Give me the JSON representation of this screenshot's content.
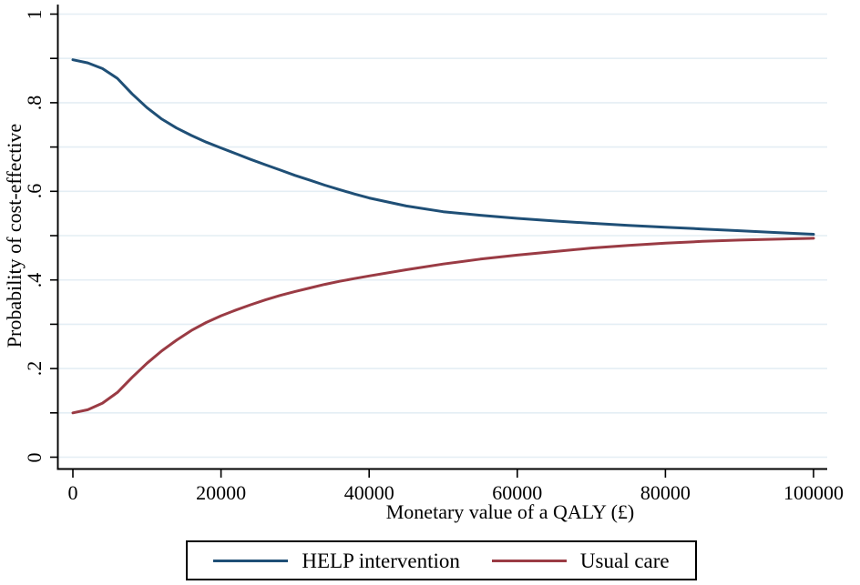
{
  "colors": {
    "background": "#ffffff",
    "axis": "#000000",
    "grid": "#e4eef4",
    "help_line": "#1f4f76",
    "usual_line": "#9a3b44",
    "legend_border": "#000000"
  },
  "figure": {
    "y_axis": {
      "title": "Probability of cost-effective",
      "tick_labels": [
        "0",
        ".2",
        ".4",
        ".6",
        ".8",
        "1"
      ],
      "tick_values": [
        0,
        0.2,
        0.4,
        0.6,
        0.8,
        1
      ],
      "minor_tick_step": 0.1,
      "range": [
        0,
        1
      ],
      "label_rotation": "vertical"
    },
    "x_axis": {
      "title": "Monetary value of a QALY (£)",
      "tick_labels": [
        "0",
        "20000",
        "40000",
        "60000",
        "80000",
        "100000"
      ],
      "tick_values": [
        0,
        20000,
        40000,
        60000,
        80000,
        100000
      ],
      "range": [
        0,
        100000
      ]
    },
    "legend": {
      "position": "bottom-center, boxed",
      "entries": [
        {
          "label": "HELP intervention",
          "color": "#1f4f76"
        },
        {
          "label": "Usual care",
          "color": "#9a3b44"
        }
      ]
    }
  },
  "chart_data": {
    "type": "line",
    "title": "",
    "xlabel": "Monetary value of a QALY (£)",
    "ylabel": "Probability of cost-effective",
    "xlim": [
      0,
      100000
    ],
    "ylim": [
      0,
      1
    ],
    "grid": "horizontal gridlines every 0.1, pale blue",
    "legend_position": "bottom, boxed",
    "x": [
      0,
      2000,
      4000,
      6000,
      8000,
      10000,
      12000,
      14000,
      16000,
      18000,
      20000,
      22000,
      24000,
      26000,
      28000,
      30000,
      32000,
      34000,
      36000,
      38000,
      40000,
      45000,
      50000,
      55000,
      60000,
      65000,
      70000,
      75000,
      80000,
      85000,
      90000,
      95000,
      100000
    ],
    "series": [
      {
        "name": "HELP intervention",
        "color": "#1f4f76",
        "values": [
          0.897,
          0.89,
          0.877,
          0.855,
          0.82,
          0.789,
          0.763,
          0.743,
          0.726,
          0.711,
          0.698,
          0.685,
          0.672,
          0.66,
          0.648,
          0.636,
          0.625,
          0.614,
          0.604,
          0.594,
          0.585,
          0.567,
          0.554,
          0.546,
          0.539,
          0.533,
          0.528,
          0.523,
          0.519,
          0.515,
          0.511,
          0.507,
          0.503
        ]
      },
      {
        "name": "Usual care",
        "color": "#9a3b44",
        "values": [
          0.1,
          0.107,
          0.122,
          0.146,
          0.18,
          0.212,
          0.24,
          0.264,
          0.286,
          0.304,
          0.319,
          0.332,
          0.344,
          0.355,
          0.365,
          0.374,
          0.382,
          0.39,
          0.397,
          0.403,
          0.409,
          0.423,
          0.436,
          0.447,
          0.456,
          0.464,
          0.472,
          0.478,
          0.483,
          0.487,
          0.49,
          0.492,
          0.494
        ]
      }
    ]
  }
}
